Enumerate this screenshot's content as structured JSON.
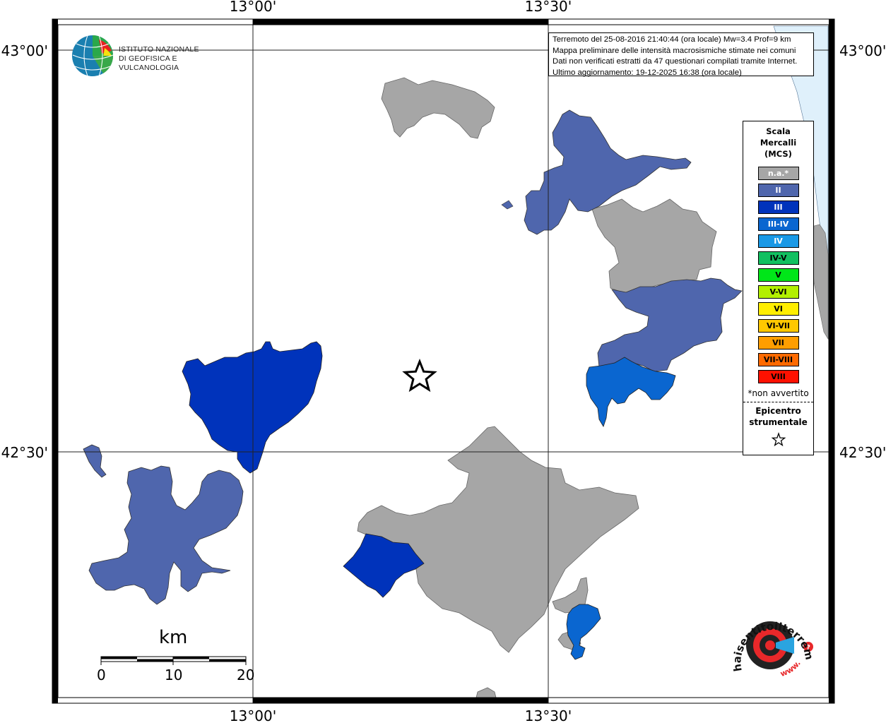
{
  "axis": {
    "top_lon": [
      "13°00'",
      "13°30'"
    ],
    "bottom_lon": [
      "13°00'",
      "13°30'"
    ],
    "left_lat": [
      "43°00'",
      "42°30'"
    ],
    "right_lat": [
      "43°00'",
      "42°30'"
    ]
  },
  "info": {
    "line1": "Terremoto del 25-08-2016 21:40:44 (ora locale) Mw=3.4 Prof=9 km",
    "line2": "Mappa preliminare delle intensità macrosismiche stimate nei comuni",
    "line3": "Dati non verificati estratti da 47 questionari compilati tramite Internet.",
    "line4": "Ultimo aggiornamento: 19-12-2025 16:38 (ora locale)"
  },
  "ingv": {
    "line1": "ISTITUTO NAZIONALE",
    "line2": "DI GEOFISICA E VULCANOLOGIA"
  },
  "legend": {
    "title_line1": "Scala",
    "title_line2": "Mercalli",
    "title_line3": "(MCS)",
    "items": [
      {
        "label": "n.a.*",
        "color": "#a6a6a6",
        "text_color": "#ffffff"
      },
      {
        "label": "II",
        "color": "#4f66ad",
        "text_color": "#ffffff"
      },
      {
        "label": "III",
        "color": "#0033bb",
        "text_color": "#ffffff"
      },
      {
        "label": "III-IV",
        "color": "#0a66d0",
        "text_color": "#ffffff"
      },
      {
        "label": "IV",
        "color": "#1a99e6",
        "text_color": "#ffffff"
      },
      {
        "label": "IV-V",
        "color": "#12c060",
        "text_color": "#000000"
      },
      {
        "label": "V",
        "color": "#00e619",
        "text_color": "#000000"
      },
      {
        "label": "V-VI",
        "color": "#b3f000",
        "text_color": "#000000"
      },
      {
        "label": "VI",
        "color": "#ffee00",
        "text_color": "#000000"
      },
      {
        "label": "VI-VII",
        "color": "#ffc800",
        "text_color": "#000000"
      },
      {
        "label": "VII",
        "color": "#ff9e00",
        "text_color": "#000000"
      },
      {
        "label": "VII-VIII",
        "color": "#ff6a00",
        "text_color": "#000000"
      },
      {
        "label": "VIII",
        "color": "#ff1100",
        "text_color": "#000000"
      }
    ],
    "note": "*non avvertito",
    "epi_line1": "Epicentro",
    "epi_line2": "strumentale"
  },
  "scale": {
    "unit": "km",
    "ticks": [
      "0",
      "10",
      "20"
    ]
  },
  "hs_logo": {
    "arc_text": "haisentitoilterremoto.it",
    "www": "www."
  },
  "colors": {
    "gray": "#a6a6a6",
    "ii": "#4f66ad",
    "iii": "#0033bb",
    "iii_iv": "#0a66d0",
    "sea": "#dff0fb"
  }
}
